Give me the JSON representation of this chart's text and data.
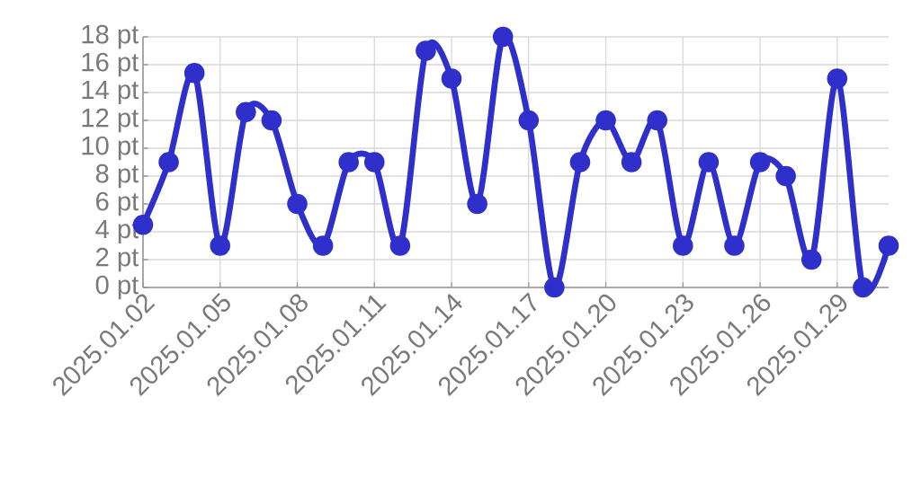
{
  "chart_data": {
    "type": "line",
    "color": "#2f2fcc",
    "marker": "circle",
    "line_style": "solid",
    "grid": true,
    "x": [
      "2025-01-02",
      "2025-01-03",
      "2025-01-04",
      "2025-01-05",
      "2025-01-06",
      "2025-01-07",
      "2025-01-08",
      "2025-01-09",
      "2025-01-10",
      "2025-01-11",
      "2025-01-12",
      "2025-01-13",
      "2025-01-14",
      "2025-01-15",
      "2025-01-16",
      "2025-01-17",
      "2025-01-18",
      "2025-01-19",
      "2025-01-20",
      "2025-01-21",
      "2025-01-22",
      "2025-01-23",
      "2025-01-24",
      "2025-01-25",
      "2025-01-26",
      "2025-01-27",
      "2025-01-28",
      "2025-01-29",
      "2025-01-30",
      "2025-01-31"
    ],
    "values": [
      4.5,
      9,
      15.4,
      3,
      12.6,
      12,
      6,
      3,
      9,
      9,
      3,
      17,
      15,
      6,
      18,
      12,
      0,
      9,
      12,
      9,
      12,
      3,
      9,
      3,
      9,
      8,
      2,
      15,
      0,
      3
    ],
    "xlim": [
      "2025-01-02",
      "2025-01-31"
    ],
    "xticks": [
      {
        "value": "2025-01-02",
        "label": "2025.01.02"
      },
      {
        "value": "2025-01-05",
        "label": "2025.01.05"
      },
      {
        "value": "2025-01-08",
        "label": "2025.01.08"
      },
      {
        "value": "2025-01-11",
        "label": "2025.01.11"
      },
      {
        "value": "2025-01-14",
        "label": "2025.01.14"
      },
      {
        "value": "2025-01-17",
        "label": "2025.01.17"
      },
      {
        "value": "2025-01-20",
        "label": "2025.01.20"
      },
      {
        "value": "2025-01-23",
        "label": "2025.01.23"
      },
      {
        "value": "2025-01-26",
        "label": "2025.01.26"
      },
      {
        "value": "2025-01-29",
        "label": "2025.01.29"
      }
    ],
    "ylim": [
      0,
      18
    ],
    "yticks": [
      {
        "value": 0,
        "label": "0 pt"
      },
      {
        "value": 2,
        "label": "2 pt"
      },
      {
        "value": 4,
        "label": "4 pt"
      },
      {
        "value": 6,
        "label": "6 pt"
      },
      {
        "value": 8,
        "label": "8 pt"
      },
      {
        "value": 10,
        "label": "10 pt"
      },
      {
        "value": 12,
        "label": "12 pt"
      },
      {
        "value": 14,
        "label": "14 pt"
      },
      {
        "value": 16,
        "label": "16 pt"
      },
      {
        "value": 18,
        "label": "18 pt"
      }
    ]
  }
}
